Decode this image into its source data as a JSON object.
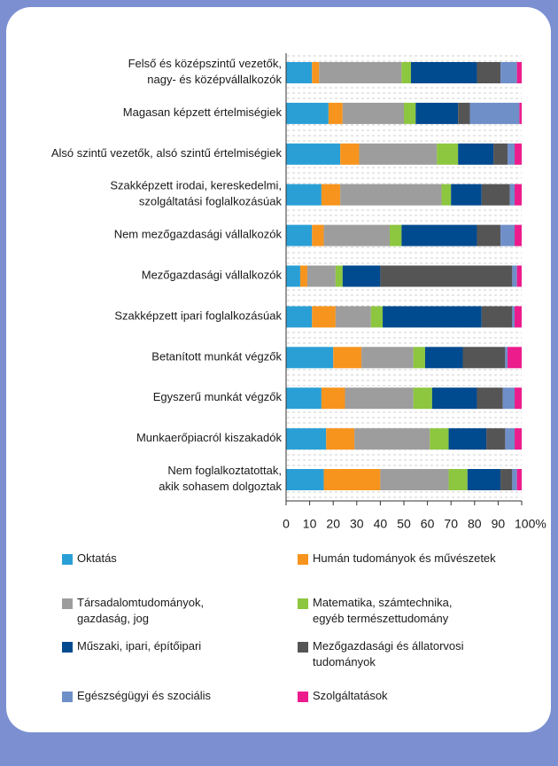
{
  "chart_data": {
    "type": "stacked-bar-horizontal",
    "categories": [
      "Felső és középszintű vezetők,\nnagy- és középvállalkozók",
      "Magasan képzett értelmiségiek",
      "Alsó szintű vezetők, alsó szintű értelmiségiek",
      "Szakképzett irodai, kereskedelmi,\nszolgáltatási foglalkozásúak",
      "Nem mezőgazdasági vállalkozók",
      "Mezőgazdasági vállalkozók",
      "Szakképzett ipari foglalkozásúak",
      "Betanított munkát végzők",
      "Egyszerű munkát végzők",
      "Munkaerőpiacról kiszakadók",
      "Nem foglalkoztatottak,\nakik sohasem dolgoztak"
    ],
    "series": [
      {
        "name": "Oktatás",
        "color": "#2a9fd6",
        "values": [
          11,
          18,
          23,
          15,
          11,
          6,
          11,
          20,
          15,
          17,
          16
        ]
      },
      {
        "name": "Humán tudományok és művészetek",
        "color": "#f7941d",
        "values": [
          3,
          6,
          8,
          8,
          5,
          3,
          10,
          12,
          10,
          12,
          24
        ]
      },
      {
        "name": "Társadalomtudományok,\ngazdaság, jog",
        "color": "#9d9d9d",
        "values": [
          35,
          26,
          33,
          43,
          28,
          12,
          15,
          22,
          29,
          32,
          29
        ]
      },
      {
        "name": "Matematika, számtechnika,\negyéb természettudomány",
        "color": "#8dc63f",
        "values": [
          4,
          5,
          9,
          4,
          5,
          3,
          5,
          5,
          8,
          8,
          8
        ]
      },
      {
        "name": "Műszaki, ipari, építőipari",
        "color": "#004a8f",
        "values": [
          28,
          18,
          15,
          13,
          32,
          16,
          42,
          16,
          19,
          16,
          14
        ]
      },
      {
        "name": "Mezőgazdasági és állatorvosi\ntudományok",
        "color": "#555555",
        "values": [
          10,
          5,
          6,
          12,
          10,
          56,
          13,
          18,
          11,
          8,
          5
        ]
      },
      {
        "name": "Egészségügyi és szociális",
        "color": "#6f8fc9",
        "values": [
          7,
          21,
          3,
          2,
          6,
          2,
          1,
          1,
          5,
          4,
          2
        ]
      },
      {
        "name": "Szolgáltatások",
        "color": "#ec1c8c",
        "values": [
          2,
          1,
          3,
          3,
          3,
          2,
          3,
          6,
          3,
          3,
          2
        ]
      }
    ],
    "xlim": [
      0,
      100
    ],
    "xticks": [
      0,
      10,
      20,
      30,
      40,
      50,
      60,
      70,
      80,
      90,
      {
        "value": 100,
        "label": "100%"
      }
    ]
  }
}
